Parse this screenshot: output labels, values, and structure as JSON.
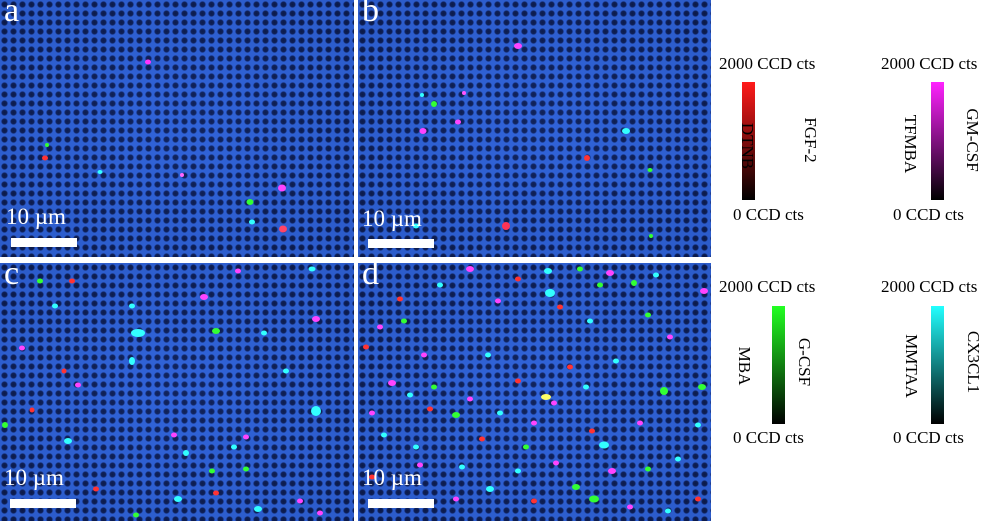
{
  "panels": [
    {
      "letter": "a",
      "scale_label": "10 µm"
    },
    {
      "letter": "b",
      "scale_label": "10 µm"
    },
    {
      "letter": "c",
      "scale_label": "10 µm"
    },
    {
      "letter": "d",
      "scale_label": "10 µm"
    }
  ],
  "colorbars": [
    {
      "max_label": "2000 CCD cts",
      "min_label": "0 CCD cts",
      "reporter": "DTNB",
      "target": "FGF-2",
      "color": "#ff1a1a"
    },
    {
      "max_label": "2000 CCD cts",
      "min_label": "0 CCD cts",
      "reporter": "TFMBA",
      "target": "GM-CSF",
      "color": "#ff22ff"
    },
    {
      "max_label": "2000 CCD cts",
      "min_label": "0 CCD cts",
      "reporter": "MBA",
      "target": "G-CSF",
      "color": "#22ff22"
    },
    {
      "max_label": "2000 CCD cts",
      "min_label": "0 CCD cts",
      "reporter": "MMTAA",
      "target": "CX3CL1",
      "color": "#22ffff"
    }
  ]
}
